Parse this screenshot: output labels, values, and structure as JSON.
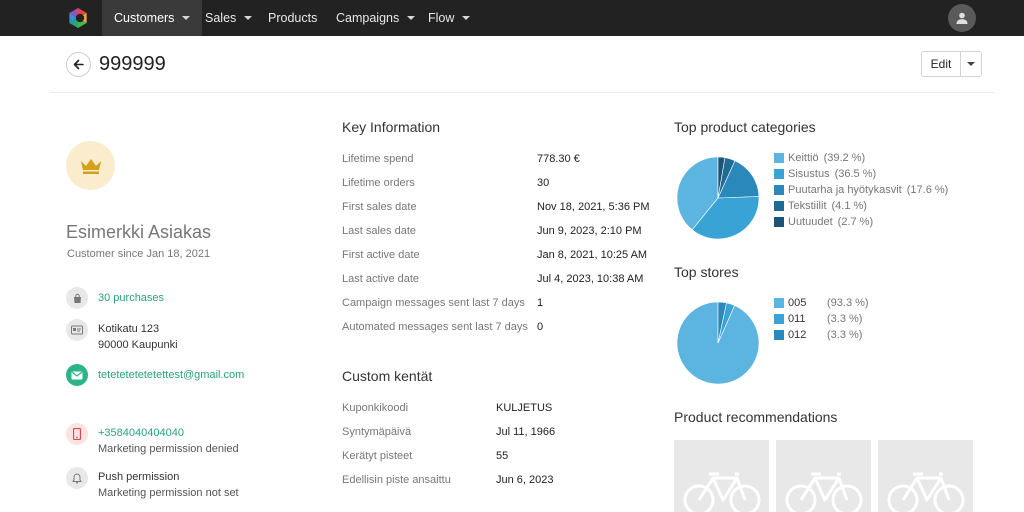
{
  "nav": {
    "items": [
      {
        "label": "Customers",
        "dropdown": true,
        "active": true
      },
      {
        "label": "Sales",
        "dropdown": true,
        "active": false
      },
      {
        "label": "Products",
        "dropdown": false,
        "active": false
      },
      {
        "label": "Campaigns",
        "dropdown": true,
        "active": false
      },
      {
        "label": "Flow",
        "dropdown": true,
        "active": false
      }
    ]
  },
  "header": {
    "title": "999999",
    "edit_label": "Edit"
  },
  "profile": {
    "name": "Esimerkki Asiakas",
    "since": "Customer since Jan 18, 2021",
    "purchases": "30 purchases",
    "address_line1": "Kotikatu 123",
    "address_line2": "90000 Kaupunki",
    "email": "tetetetetetetettest@gmail.com",
    "phone": "+3584040404040",
    "phone_permission": "Marketing permission denied",
    "push_title": "Push permission",
    "push_permission": "Marketing permission not set"
  },
  "key_info": {
    "title": "Key Information",
    "rows": [
      {
        "label": "Lifetime spend",
        "value": "778.30 €"
      },
      {
        "label": "Lifetime orders",
        "value": "30"
      },
      {
        "label": "First sales date",
        "value": "Nov 18, 2021, 5:36 PM"
      },
      {
        "label": "Last sales date",
        "value": "Jun 9, 2023, 2:10 PM"
      },
      {
        "label": "First active date",
        "value": "Jan 8, 2021, 10:25 AM"
      },
      {
        "label": "Last active date",
        "value": "Jul 4, 2023, 10:38 AM"
      },
      {
        "label": "Campaign messages sent last 7 days",
        "value": "1"
      },
      {
        "label": "Automated messages sent last 7 days",
        "value": "0"
      }
    ]
  },
  "custom_fields": {
    "title": "Custom kentät",
    "rows": [
      {
        "label": "Kuponkikoodi",
        "value": "KULJETUS"
      },
      {
        "label": "Syntymäpäivä",
        "value": "Jul 11, 1966"
      },
      {
        "label": "Kerätyt pisteet",
        "value": "55"
      },
      {
        "label": "Edellisin piste ansaittu",
        "value": "Jun 6, 2023"
      }
    ]
  },
  "chart_data": [
    {
      "type": "pie",
      "title": "Top product categories",
      "slices": [
        {
          "label": "Keittiö",
          "pct_label": "(39.2 %)",
          "value": 39.2,
          "color": "#5bb5e0"
        },
        {
          "label": "Sisustus",
          "pct_label": "(36.5 %)",
          "value": 36.5,
          "color": "#3aa3d6"
        },
        {
          "label": "Puutarha ja hyötykasvit",
          "pct_label": "(17.6 %)",
          "value": 17.6,
          "color": "#2a88bb"
        },
        {
          "label": "Tekstiilit",
          "pct_label": "(4.1 %)",
          "value": 4.1,
          "color": "#206b95"
        },
        {
          "label": "Uutuudet",
          "pct_label": "(2.7 %)",
          "value": 2.7,
          "color": "#1a5478"
        }
      ]
    },
    {
      "type": "pie",
      "title": "Top stores",
      "slices": [
        {
          "label": "005",
          "pct_label": "(93.3 %)",
          "value": 93.3,
          "color": "#5bb5e0"
        },
        {
          "label": "011",
          "pct_label": "(3.3 %)",
          "value": 3.3,
          "color": "#3aa3d6"
        },
        {
          "label": "012",
          "pct_label": "(3.3 %)",
          "value": 3.3,
          "color": "#2a88bb"
        }
      ]
    }
  ],
  "recommendations": {
    "title": "Product recommendations",
    "count": 3
  },
  "colors": {
    "nav_bg": "#222222",
    "accent_green": "#2aa37c",
    "crown": "#d4a017"
  }
}
